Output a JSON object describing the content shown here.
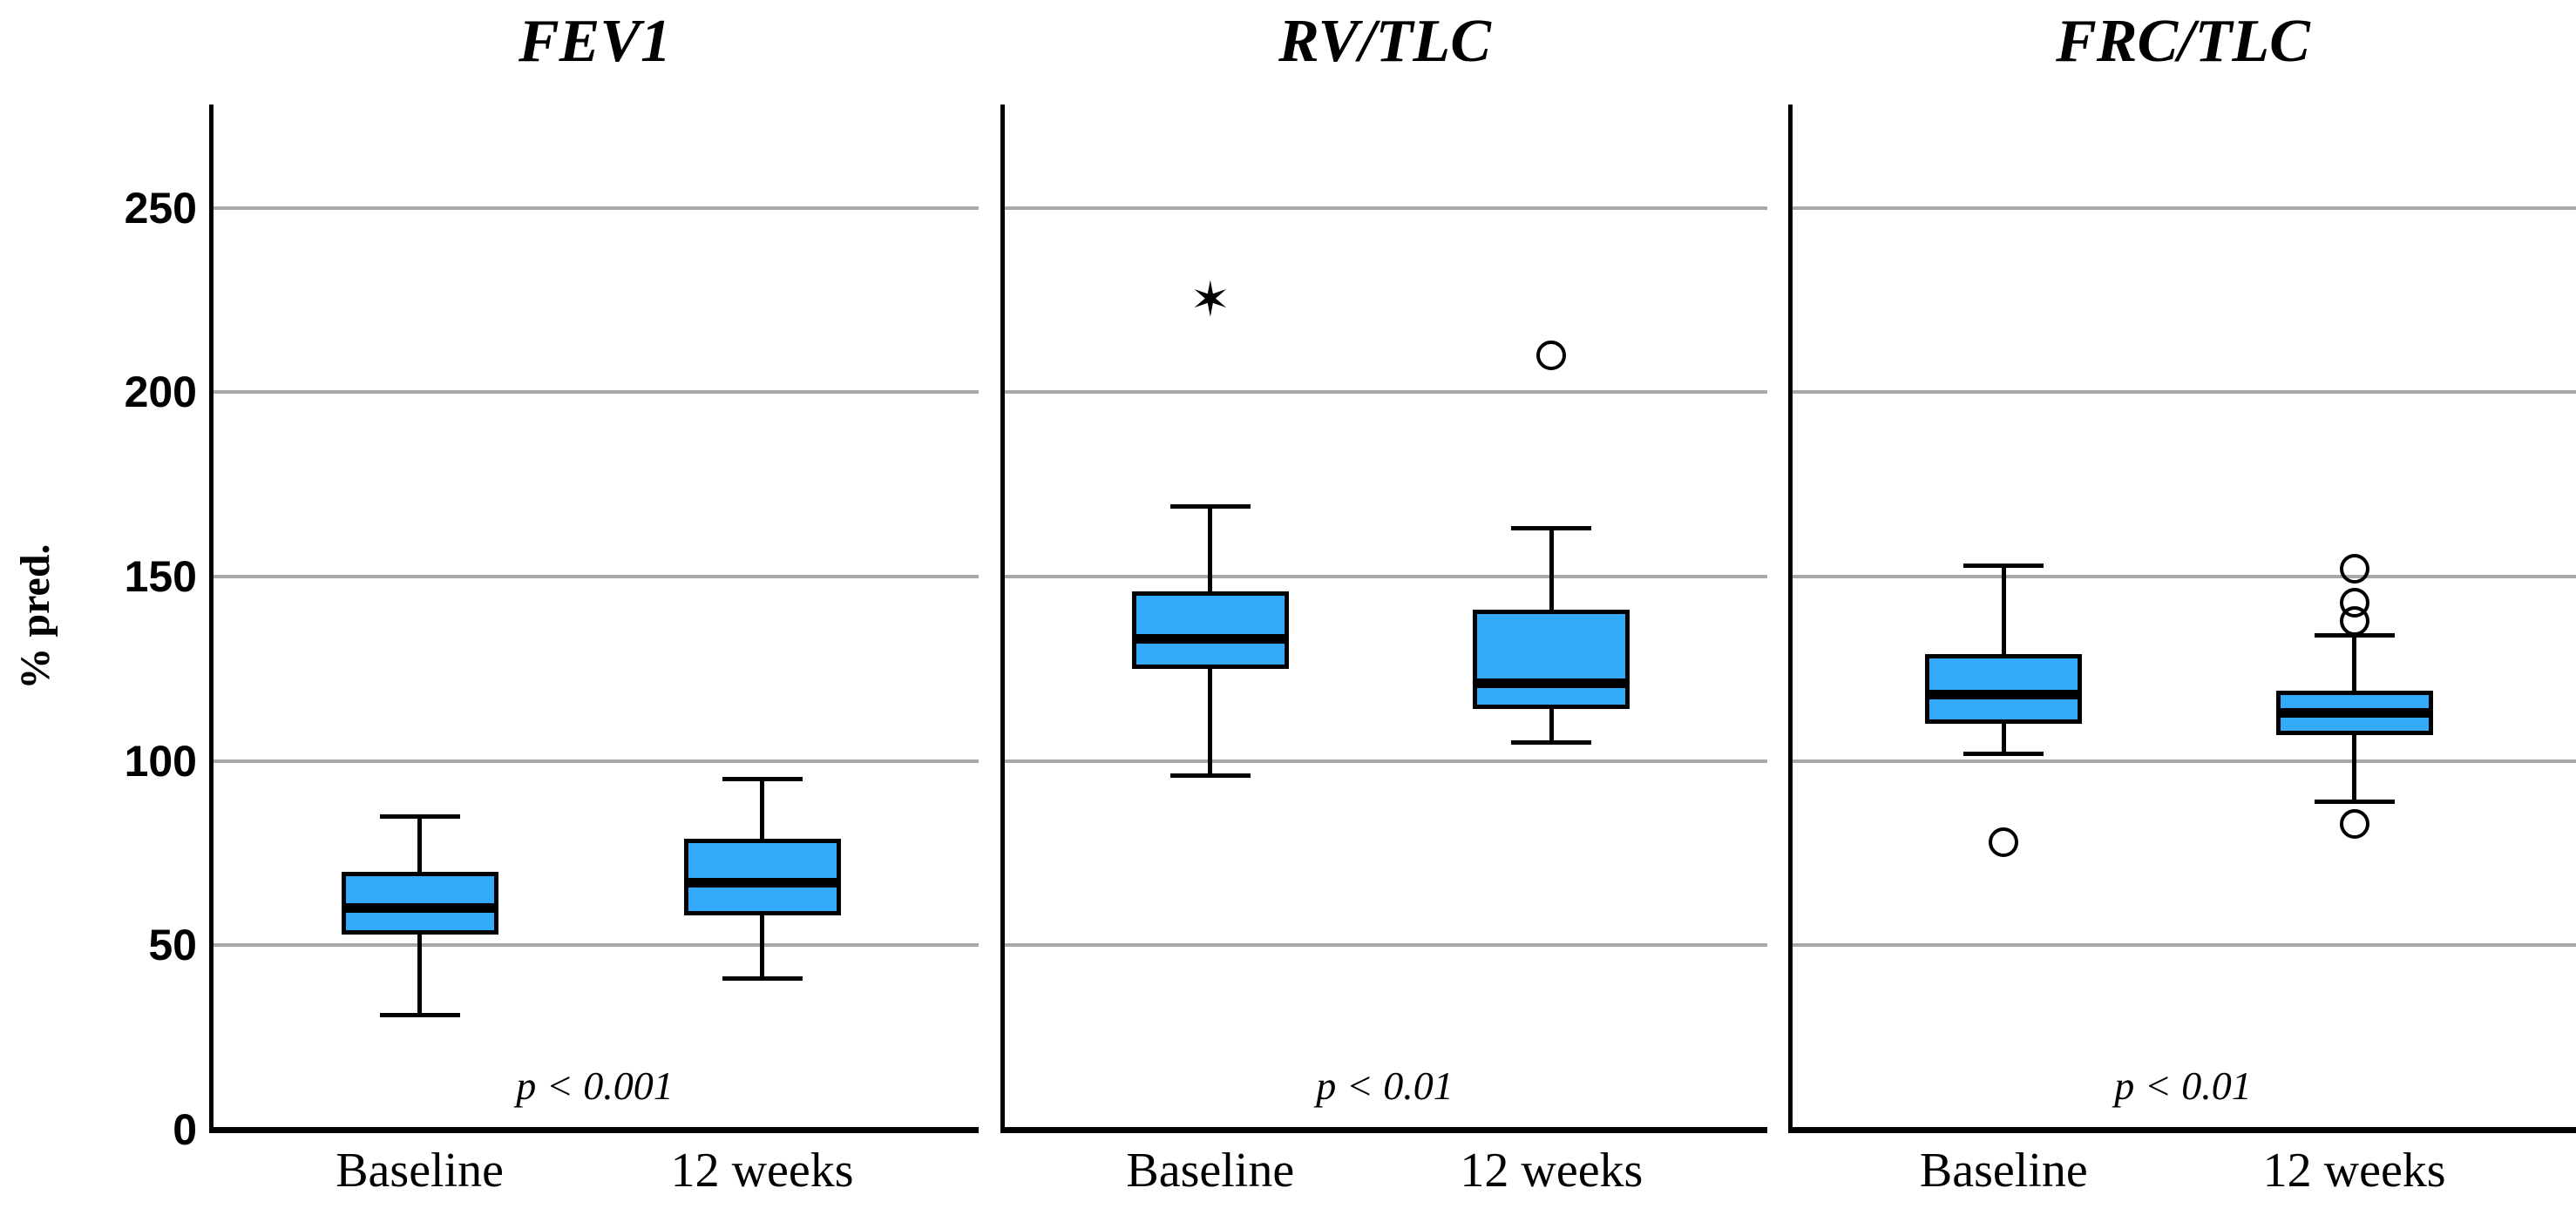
{
  "figure": {
    "background": "#FFFFFF",
    "y_axis": {
      "label": "% pred.",
      "tick_labels": [
        "0",
        "50",
        "100",
        "150",
        "200",
        "250"
      ]
    },
    "colors": {
      "box_fill": "#33ABFA",
      "line": "#000000",
      "gridline": "#A8A8A8"
    }
  },
  "chart_data": {
    "type": "boxplot",
    "ylabel": "% pred.",
    "ylim": [
      0,
      278
    ],
    "yticks": [
      0,
      50,
      100,
      150,
      200,
      250
    ],
    "grid": "horizontal",
    "legend": "none",
    "categories": [
      "Baseline",
      "12 weeks"
    ],
    "panels": [
      {
        "title": "FEV1",
        "p_label": "p < 0.001",
        "boxes": [
          {
            "category": "Baseline",
            "whisker_low": 31,
            "q1": 53,
            "median": 60,
            "q3": 70,
            "whisker_high": 85,
            "outliers": []
          },
          {
            "category": "12 weeks",
            "whisker_low": 41,
            "q1": 58,
            "median": 67,
            "q3": 79,
            "whisker_high": 95,
            "outliers": []
          }
        ]
      },
      {
        "title": "RV/TLC",
        "p_label": "p < 0.01",
        "boxes": [
          {
            "category": "Baseline",
            "whisker_low": 96,
            "q1": 125,
            "median": 133,
            "q3": 146,
            "whisker_high": 169,
            "outliers": [
              {
                "value": 225,
                "marker": "star"
              }
            ]
          },
          {
            "category": "12 weeks",
            "whisker_low": 105,
            "q1": 114,
            "median": 121,
            "q3": 141,
            "whisker_high": 163,
            "outliers": [
              {
                "value": 210,
                "marker": "circle"
              }
            ]
          }
        ]
      },
      {
        "title": "FRC/TLC",
        "p_label": "p < 0.01",
        "boxes": [
          {
            "category": "Baseline",
            "whisker_low": 102,
            "q1": 110,
            "median": 118,
            "q3": 129,
            "whisker_high": 153,
            "outliers": [
              {
                "value": 78,
                "marker": "circle"
              }
            ]
          },
          {
            "category": "12 weeks",
            "whisker_low": 89,
            "q1": 107,
            "median": 113,
            "q3": 119,
            "whisker_high": 134,
            "outliers": [
              {
                "value": 152,
                "marker": "circle"
              },
              {
                "value": 143,
                "marker": "circle"
              },
              {
                "value": 138,
                "marker": "circle"
              },
              {
                "value": 83,
                "marker": "circle"
              }
            ]
          }
        ]
      }
    ]
  }
}
